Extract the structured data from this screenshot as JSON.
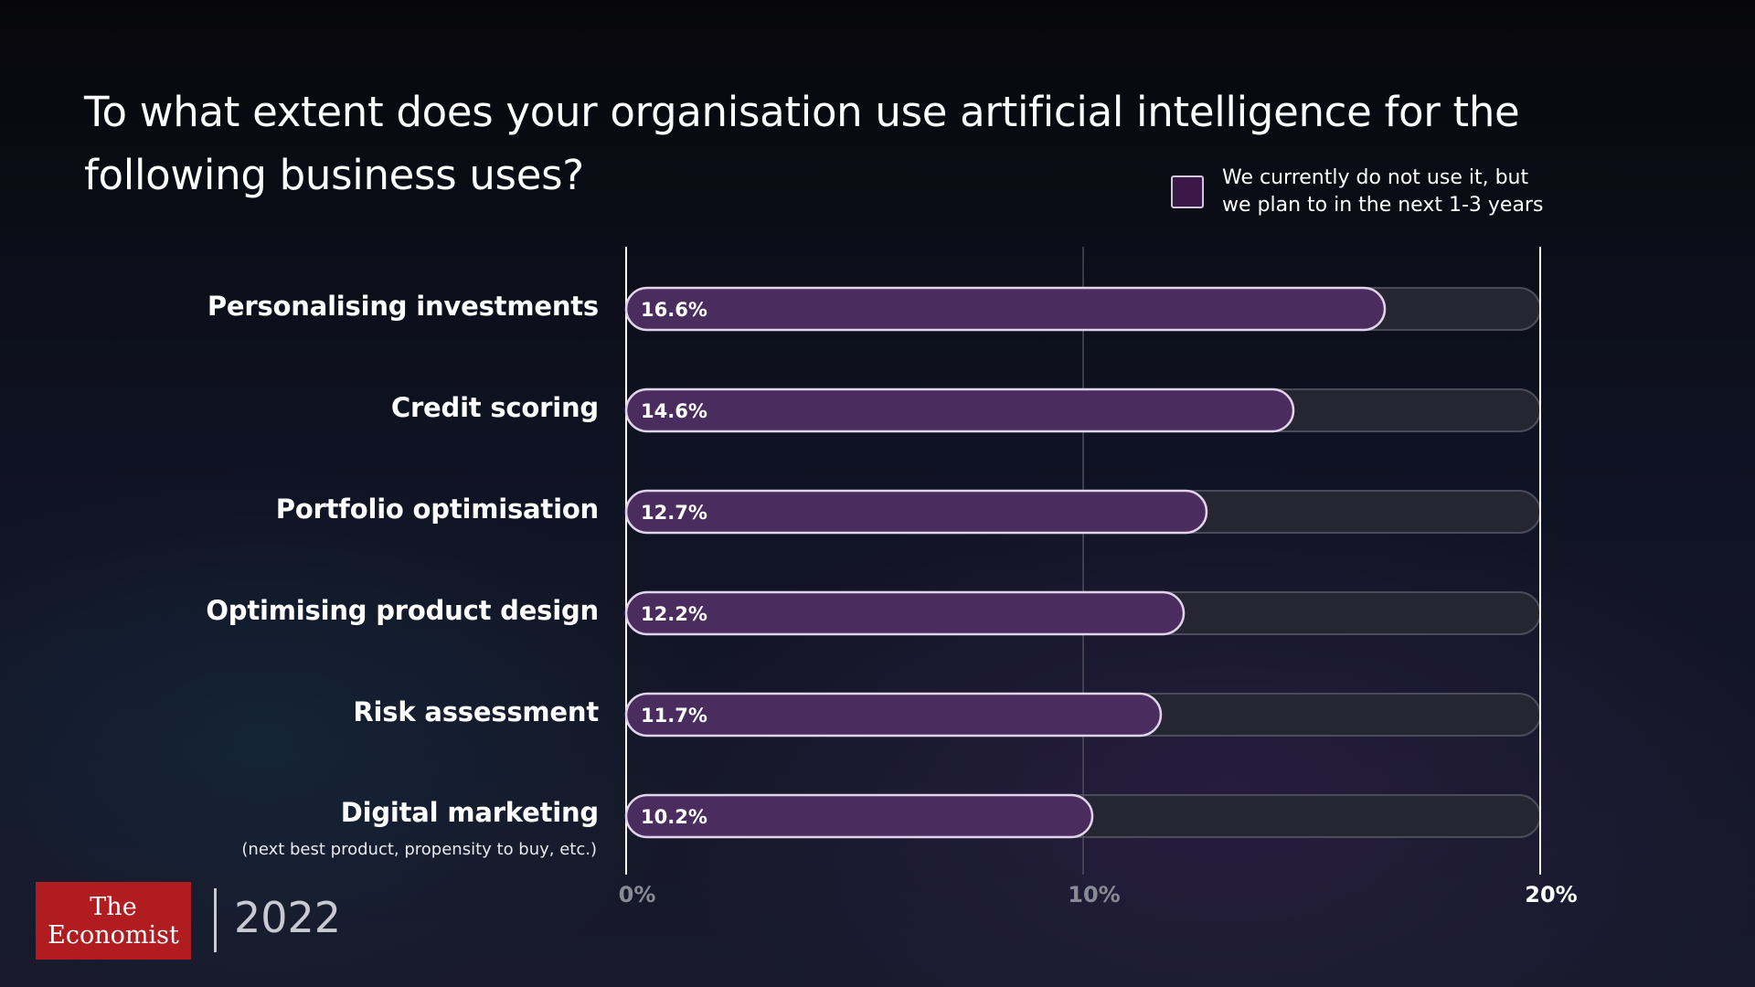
{
  "chart_data": {
    "type": "bar",
    "orientation": "horizontal",
    "title": "To what extent does your organisation use artificial intelligence for the following business uses?",
    "legend": {
      "placement": "top-right",
      "entries": [
        "We currently do not use it, but\nwe plan to in the next 1-3 years"
      ]
    },
    "categories": [
      "Personalising investments",
      "Credit scoring",
      "Portfolio optimisation",
      "Optimising product design",
      "Risk assessment",
      "Digital marketing"
    ],
    "category_notes": {
      "Digital marketing": "(next best product, propensity to buy, etc.)"
    },
    "values": [
      16.6,
      14.6,
      12.7,
      12.2,
      11.7,
      10.2
    ],
    "value_labels": [
      "16.6%",
      "14.6%",
      "12.7%",
      "12.2%",
      "11.7%",
      "10.2%"
    ],
    "xlim": [
      0,
      20
    ],
    "x_ticks": [
      0,
      10,
      20
    ],
    "x_tick_labels": [
      "0%",
      "10%",
      "20%"
    ],
    "grid": true
  },
  "colors": {
    "bar_fill": "#4a2c5e",
    "bar_stroke": "#e0d4ea",
    "track_fill": "#262633",
    "track_stroke": "#4b4b5c",
    "legend_swatch": "#3c1848",
    "logo_red": "#b01c20"
  },
  "branding": {
    "logo_line1": "The",
    "logo_line2": "Economist",
    "year": "2022"
  }
}
